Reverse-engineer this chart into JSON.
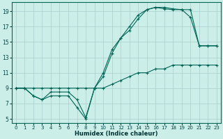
{
  "xlabel": "Humidex (Indice chaleur)",
  "background_color": "#cceee8",
  "grid_color": "#aacccc",
  "line_color": "#006655",
  "xlim": [
    -0.5,
    23.5
  ],
  "ylim": [
    4.5,
    20.2
  ],
  "xticks": [
    0,
    1,
    2,
    3,
    4,
    5,
    6,
    7,
    8,
    9,
    10,
    11,
    12,
    13,
    14,
    15,
    16,
    17,
    18,
    19,
    20,
    21,
    22,
    23
  ],
  "yticks": [
    5,
    7,
    9,
    11,
    13,
    15,
    17,
    19
  ],
  "line1_x": [
    0,
    1,
    2,
    3,
    4,
    5,
    6,
    7,
    8,
    9,
    10,
    11,
    12,
    13,
    14,
    15,
    16,
    17,
    18,
    19,
    20,
    21,
    22,
    23
  ],
  "line1_y": [
    9.0,
    9.0,
    9.0,
    9.0,
    9.0,
    9.0,
    9.0,
    9.0,
    9.0,
    9.0,
    9.0,
    9.5,
    10.0,
    10.5,
    11.0,
    11.0,
    11.5,
    11.5,
    12.0,
    12.0,
    12.0,
    12.0,
    12.0,
    12.0
  ],
  "line2_x": [
    0,
    1,
    2,
    3,
    4,
    5,
    6,
    7,
    8,
    9,
    10,
    11,
    12,
    13,
    14,
    15,
    16,
    17,
    18,
    19,
    20,
    21,
    22,
    23
  ],
  "line2_y": [
    9.0,
    9.0,
    8.0,
    7.5,
    8.0,
    8.0,
    8.0,
    6.5,
    5.0,
    9.0,
    10.5,
    13.5,
    15.5,
    17.0,
    18.5,
    19.2,
    19.5,
    19.5,
    19.3,
    19.2,
    19.2,
    14.5,
    14.5,
    14.5
  ],
  "line3_x": [
    0,
    1,
    2,
    3,
    4,
    5,
    6,
    7,
    8,
    9,
    10,
    11,
    12,
    13,
    14,
    15,
    16,
    17,
    18,
    19,
    20,
    21,
    22,
    23
  ],
  "line3_y": [
    9.0,
    9.0,
    8.0,
    7.5,
    8.5,
    8.5,
    8.5,
    7.5,
    5.2,
    9.0,
    11.0,
    14.0,
    15.5,
    16.5,
    18.0,
    19.2,
    19.5,
    19.3,
    19.2,
    19.2,
    18.2,
    14.5,
    14.5,
    14.5
  ]
}
